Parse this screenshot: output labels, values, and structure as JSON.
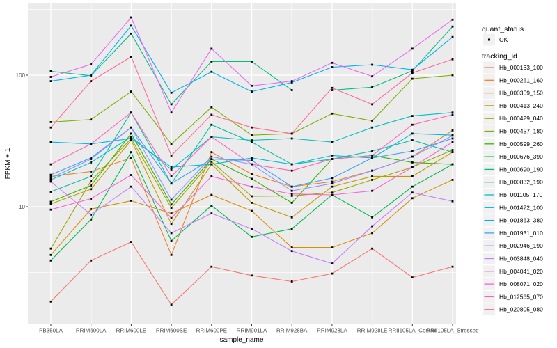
{
  "chart_data": {
    "type": "line",
    "title": "",
    "xlabel": "sample_name",
    "ylabel": "FPKM + 1",
    "y_scale": "log10",
    "grid": true,
    "legend_position": "right",
    "panel_background": "#EBEBEB",
    "gridline_color": "#FFFFFF",
    "point_color": "#000000",
    "y_ticks": [
      "100",
      "10"
    ],
    "y_tick_values": [
      100,
      10
    ],
    "y_minor_gridlines": [
      316.2,
      31.6,
      3.16
    ],
    "ylim": [
      1.3,
      350
    ],
    "categories": [
      "PB350LA",
      "RRIM600LA",
      "RRIM600LE",
      "RRIM600SE",
      "RRIM600PE",
      "RRIM901LA",
      "RRIM928BA",
      "RRIM928LA",
      "RRIM928LE",
      "RRII105LA_Control",
      "RRII105LA_Stressed"
    ],
    "series": [
      {
        "tracking_id": "Hb_000163_100",
        "color": "#F8766D",
        "values": [
          1.9,
          3.9,
          5.4,
          1.8,
          3.5,
          3.0,
          2.7,
          3.1,
          4.8,
          2.9,
          3.5
        ]
      },
      {
        "tracking_id": "Hb_000261_160",
        "color": "#EA8331",
        "values": [
          17,
          18.5,
          23.5,
          4.3,
          26,
          17.7,
          14.2,
          15.5,
          18.8,
          24,
          38
        ]
      },
      {
        "tracking_id": "Hb_000359_150",
        "color": "#D89000",
        "values": [
          4.3,
          9.6,
          11.1,
          8.9,
          12.3,
          9.3,
          4.9,
          4.9,
          6.3,
          11.6,
          16
        ]
      },
      {
        "tracking_id": "Hb_000413_240",
        "color": "#C09B00",
        "values": [
          10.5,
          13.6,
          32,
          7.4,
          21,
          10.7,
          8.3,
          14.2,
          17,
          17,
          26
        ]
      },
      {
        "tracking_id": "Hb_000429_040",
        "color": "#A3A500",
        "values": [
          4.8,
          15.7,
          33,
          9.8,
          22,
          12,
          12.1,
          12.8,
          16,
          20,
          27
        ]
      },
      {
        "tracking_id": "Hb_000457_180",
        "color": "#7CAE00",
        "values": [
          44,
          46,
          75,
          30,
          57,
          35,
          36,
          51,
          45,
          94,
          100
        ]
      },
      {
        "tracking_id": "Hb_000599_260",
        "color": "#39B600",
        "values": [
          10.9,
          14.5,
          36,
          10.4,
          23,
          16.3,
          10.7,
          23,
          24.5,
          21.7,
          21
        ]
      },
      {
        "tracking_id": "Hb_000676_390",
        "color": "#00BB4E",
        "values": [
          3.9,
          8,
          26,
          5.5,
          10.2,
          5.9,
          6.8,
          12.3,
          8.3,
          14.2,
          21
        ]
      },
      {
        "tracking_id": "Hb_000690_190",
        "color": "#00BF7D",
        "values": [
          107,
          99,
          207,
          60,
          127,
          127,
          77,
          77,
          81,
          108,
          234
        ]
      },
      {
        "tracking_id": "Hb_000832_190",
        "color": "#00C1A3",
        "values": [
          13,
          17,
          52,
          15,
          42,
          31,
          21,
          23,
          26.5,
          32,
          26
        ]
      },
      {
        "tracking_id": "Hb_001105_170",
        "color": "#00BFC4",
        "values": [
          16,
          21.7,
          34,
          19.2,
          34,
          32,
          33,
          31,
          40,
          49,
          52
        ]
      },
      {
        "tracking_id": "Hb_001472_100",
        "color": "#00BAE0",
        "values": [
          31,
          30,
          33,
          20,
          21,
          23.5,
          21,
          24.5,
          23.5,
          36,
          35
        ]
      },
      {
        "tracking_id": "Hb_001863_380",
        "color": "#00B0F6",
        "values": [
          90,
          100,
          238,
          73.5,
          106,
          75,
          88,
          115,
          120,
          110,
          195
        ]
      },
      {
        "tracking_id": "Hb_001931_010",
        "color": "#35A2FF",
        "values": [
          17.5,
          23.5,
          40,
          15,
          23,
          22.5,
          14.2,
          16.5,
          23.5,
          26.5,
          33
        ]
      },
      {
        "tracking_id": "Hb_002946_190",
        "color": "#9590FF",
        "values": [
          16.5,
          23,
          40,
          11.3,
          24,
          21,
          13.2,
          15,
          18.8,
          24,
          34.7
        ]
      },
      {
        "tracking_id": "Hb_003848_040",
        "color": "#C77CFF",
        "values": [
          15.5,
          8.7,
          14.2,
          6.3,
          8.9,
          6.8,
          4.6,
          3.7,
          7.1,
          12.8,
          11
        ]
      },
      {
        "tracking_id": "Hb_004041_020",
        "color": "#E76BF3",
        "values": [
          97,
          121,
          275,
          52,
          159,
          83,
          90,
          124,
          98,
          159,
          264
        ]
      },
      {
        "tracking_id": "Hb_008071_020",
        "color": "#FA62DB",
        "values": [
          9.5,
          11.5,
          17.4,
          8.2,
          17,
          14.2,
          12.5,
          12.3,
          13.2,
          20,
          31
        ]
      },
      {
        "tracking_id": "Hb_012565_070",
        "color": "#FF62BC",
        "values": [
          21,
          30,
          52,
          17,
          34,
          21,
          18.8,
          23,
          24.5,
          42,
          50
        ]
      },
      {
        "tracking_id": "Hb_020805_080",
        "color": "#FF6A98",
        "values": [
          40,
          90,
          138,
          24.5,
          50,
          40,
          36,
          80,
          60,
          104,
          132
        ]
      }
    ]
  },
  "legend": {
    "quant_status_title": "quant_status",
    "quant_status_items": [
      {
        "label": "OK"
      }
    ],
    "tracking_id_title": "tracking_id"
  }
}
